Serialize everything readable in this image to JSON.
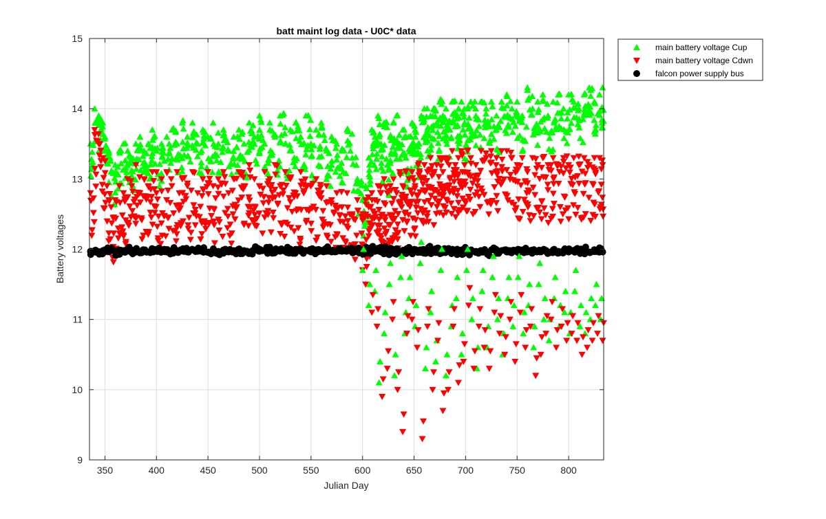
{
  "chart_data": {
    "type": "scatter",
    "title": "batt maint log data - U0C* data",
    "xlabel": "Julian Day",
    "ylabel": "Battery voltages",
    "xlim": [
      335,
      834
    ],
    "ylim": [
      9,
      15
    ],
    "xticks": [
      350,
      400,
      450,
      500,
      550,
      600,
      650,
      700,
      750,
      800
    ],
    "yticks": [
      9,
      10,
      11,
      12,
      13,
      14,
      15
    ],
    "grid": true,
    "legend_position": "outside top-right",
    "series": [
      {
        "name": "main battery voltage Cup",
        "marker": "triangle-up",
        "color": "#00ff00",
        "x": [
          336,
          340,
          344,
          348,
          352,
          356,
          360,
          364,
          368,
          372,
          376,
          380,
          384,
          388,
          392,
          396,
          400,
          405,
          410,
          415,
          420,
          425,
          430,
          435,
          440,
          445,
          450,
          455,
          460,
          465,
          470,
          475,
          480,
          485,
          490,
          495,
          500,
          505,
          510,
          515,
          520,
          525,
          530,
          535,
          540,
          545,
          550,
          555,
          560,
          565,
          570,
          575,
          580,
          585,
          590,
          595,
          600,
          603,
          606,
          609,
          612,
          615,
          618,
          621,
          624,
          627,
          630,
          633,
          636,
          639,
          642,
          645,
          648,
          651,
          654,
          657,
          660,
          663,
          666,
          669,
          672,
          675,
          678,
          681,
          684,
          687,
          690,
          693,
          696,
          699,
          702,
          705,
          710,
          715,
          720,
          725,
          730,
          735,
          740,
          745,
          750,
          755,
          760,
          765,
          770,
          775,
          780,
          785,
          790,
          795,
          800,
          805,
          810,
          815,
          820,
          825,
          830,
          833
        ],
        "y": [
          13.5,
          14.0,
          13.9,
          13.8,
          13.4,
          13.1,
          13.2,
          13.4,
          13.5,
          13.4,
          13.3,
          13.5,
          13.6,
          13.4,
          13.5,
          13.7,
          13.4,
          13.5,
          13.6,
          13.7,
          13.5,
          13.8,
          13.6,
          13.8,
          13.5,
          13.7,
          13.6,
          13.8,
          13.5,
          13.7,
          13.4,
          13.6,
          13.7,
          13.5,
          13.8,
          13.6,
          13.9,
          13.5,
          13.8,
          13.6,
          13.9,
          13.5,
          13.7,
          13.8,
          13.6,
          13.9,
          13.5,
          13.7,
          13.8,
          13.4,
          13.6,
          13.5,
          13.4,
          13.7,
          13.3,
          13.0,
          12.7,
          12.9,
          13.3,
          13.7,
          13.6,
          13.9,
          13.5,
          13.8,
          13.2,
          13.6,
          13.8,
          13.9,
          13.5,
          13.7,
          13.3,
          13.6,
          13.8,
          13.7,
          13.5,
          13.9,
          14.0,
          13.7,
          13.9,
          14.0,
          13.8,
          14.1,
          13.9,
          14.0,
          13.8,
          14.1,
          13.9,
          14.0,
          14.1,
          13.8,
          14.0,
          14.1,
          13.9,
          14.1,
          14.0,
          14.1,
          13.9,
          14.1,
          14.2,
          14.0,
          14.1,
          13.9,
          14.3,
          14.0,
          14.1,
          14.2,
          13.9,
          14.1,
          14.2,
          14.0,
          14.2,
          14.1,
          14.0,
          14.2,
          14.3,
          14.1,
          14.2,
          14.3
        ]
      },
      {
        "name": "main battery voltage Cdwn",
        "marker": "triangle-down",
        "color": "#ff0000",
        "x": [
          336,
          340,
          344,
          348,
          352,
          356,
          360,
          364,
          368,
          372,
          376,
          380,
          384,
          388,
          392,
          396,
          400,
          405,
          410,
          415,
          420,
          425,
          430,
          435,
          440,
          445,
          450,
          455,
          460,
          465,
          470,
          475,
          480,
          485,
          490,
          495,
          500,
          505,
          510,
          515,
          520,
          525,
          530,
          535,
          540,
          545,
          550,
          555,
          560,
          565,
          570,
          575,
          580,
          585,
          590,
          595,
          600,
          603,
          606,
          609,
          612,
          615,
          618,
          621,
          624,
          627,
          630,
          633,
          636,
          639,
          642,
          645,
          648,
          651,
          654,
          657,
          660,
          663,
          666,
          669,
          672,
          675,
          678,
          681,
          684,
          687,
          690,
          693,
          696,
          699,
          702,
          705,
          710,
          715,
          720,
          725,
          730,
          735,
          740,
          745,
          750,
          755,
          760,
          765,
          770,
          775,
          780,
          785,
          790,
          795,
          800,
          805,
          810,
          815,
          820,
          825,
          830,
          833
        ],
        "y": [
          12.8,
          13.7,
          13.5,
          13.3,
          12.9,
          12.6,
          12.7,
          12.9,
          12.8,
          13.0,
          12.9,
          13.2,
          12.8,
          13.0,
          12.9,
          13.1,
          12.8,
          13.0,
          13.1,
          12.9,
          13.1,
          13.0,
          12.9,
          13.1,
          12.8,
          13.0,
          13.1,
          12.9,
          13.0,
          13.1,
          12.8,
          13.0,
          13.1,
          12.9,
          13.2,
          13.0,
          12.9,
          13.1,
          13.0,
          13.2,
          12.9,
          13.1,
          13.0,
          12.8,
          13.1,
          12.9,
          12.9,
          13.0,
          12.8,
          12.9,
          12.7,
          12.8,
          12.6,
          12.8,
          12.5,
          12.7,
          12.5,
          12.7,
          12.6,
          12.8,
          12.7,
          12.9,
          12.8,
          13.0,
          12.8,
          12.9,
          13.0,
          12.8,
          13.1,
          12.9,
          13.1,
          13.0,
          13.1,
          12.9,
          13.2,
          13.0,
          13.2,
          13.1,
          13.3,
          13.1,
          13.2,
          13.3,
          13.1,
          13.3,
          13.2,
          13.4,
          13.2,
          13.3,
          13.4,
          13.2,
          13.4,
          13.3,
          13.2,
          13.4,
          13.3,
          13.4,
          13.3,
          13.4,
          13.4,
          13.3,
          13.2,
          13.3,
          13.1,
          13.3,
          13.2,
          13.3,
          13.2,
          13.3,
          13.2,
          13.3,
          13.2,
          13.3,
          13.2,
          13.3,
          13.2,
          13.3,
          13.3,
          13.2
        ]
      },
      {
        "name": "falcon power supply bus",
        "marker": "circle",
        "color": "#000000",
        "x": [
          336,
          340,
          344,
          348,
          352,
          356,
          360,
          364,
          368,
          372,
          376,
          380,
          384,
          388,
          392,
          396,
          400,
          405,
          410,
          415,
          420,
          425,
          430,
          435,
          440,
          445,
          450,
          455,
          460,
          465,
          470,
          475,
          480,
          485,
          490,
          495,
          500,
          505,
          510,
          515,
          520,
          525,
          530,
          535,
          540,
          545,
          550,
          555,
          560,
          565,
          570,
          575,
          580,
          585,
          590,
          595,
          600,
          603,
          606,
          609,
          612,
          615,
          618,
          621,
          624,
          627,
          630,
          633,
          636,
          639,
          642,
          645,
          648,
          651,
          654,
          657,
          660,
          663,
          666,
          669,
          672,
          675,
          678,
          681,
          684,
          687,
          690,
          693,
          696,
          699,
          702,
          705,
          710,
          715,
          720,
          725,
          730,
          735,
          740,
          745,
          750,
          755,
          760,
          765,
          770,
          775,
          780,
          785,
          790,
          795,
          800,
          805,
          810,
          815,
          820,
          825,
          830,
          833
        ],
        "y": [
          11.97,
          11.98,
          11.96,
          11.98,
          11.97,
          11.99,
          11.96,
          11.98,
          11.97,
          11.98,
          11.96,
          11.99,
          11.97,
          11.98,
          11.96,
          11.98,
          11.97,
          11.99,
          11.96,
          11.98,
          11.97,
          11.98,
          11.96,
          11.99,
          11.97,
          11.98,
          11.96,
          11.98,
          11.97,
          11.99,
          11.96,
          11.98,
          11.97,
          11.98,
          11.96,
          11.99,
          11.97,
          11.98,
          11.96,
          11.98,
          11.97,
          11.99,
          11.96,
          11.98,
          11.97,
          11.98,
          11.96,
          11.99,
          11.97,
          11.98,
          11.96,
          11.98,
          11.97,
          11.99,
          11.96,
          11.98,
          11.97,
          11.98,
          11.96,
          11.99,
          11.97,
          11.98,
          11.96,
          11.98,
          11.97,
          11.99,
          11.96,
          11.98,
          11.97,
          11.98,
          11.96,
          11.99,
          11.97,
          11.98,
          11.96,
          11.98,
          11.97,
          11.99,
          11.96,
          11.98,
          11.97,
          11.98,
          11.96,
          11.99,
          11.97,
          11.98,
          11.96,
          11.98,
          11.97,
          11.99,
          11.96,
          11.98,
          11.97,
          11.98,
          11.96,
          11.99,
          11.97,
          11.98,
          11.96,
          11.98,
          11.97,
          11.99,
          11.96,
          11.98,
          11.97,
          11.98,
          11.96,
          11.99,
          11.97,
          11.98,
          11.96,
          11.98,
          11.97,
          11.99,
          11.96,
          11.98,
          11.97,
          11.96
        ]
      }
    ],
    "low_outliers": {
      "cup_x": [
        600,
        606,
        612,
        616,
        621,
        626,
        631,
        637,
        641,
        645,
        651,
        656,
        661,
        666,
        671,
        676,
        681,
        686,
        691,
        696,
        701,
        706,
        711,
        716,
        721,
        726,
        731,
        736,
        741,
        746,
        751,
        756,
        761,
        766,
        771,
        776,
        781,
        786,
        791,
        796,
        801,
        806,
        811,
        816,
        821,
        826,
        831
      ],
      "cup_y": [
        11.7,
        11.2,
        11.4,
        10.1,
        10.8,
        11.5,
        10.2,
        11.6,
        10.8,
        11.3,
        10.9,
        11.8,
        10.3,
        11.1,
        10.4,
        11.7,
        10.2,
        10.9,
        11.3,
        10.5,
        11.7,
        11.0,
        10.3,
        11.4,
        10.6,
        11.6,
        11.0,
        10.5,
        11.3,
        10.9,
        11.6,
        10.8,
        11.2,
        10.6,
        11.5,
        11.0,
        10.7,
        11.3,
        10.9,
        11.1,
        10.8,
        11.4,
        10.9,
        10.8,
        11.0,
        11.2,
        11.0
      ],
      "cdwn_x": [
        603,
        609,
        614,
        619,
        624,
        629,
        634,
        639,
        643,
        648,
        653,
        658,
        663,
        668,
        673,
        678,
        683,
        688,
        693,
        698,
        703,
        708,
        713,
        718,
        723,
        728,
        733,
        738,
        743,
        748,
        753,
        758,
        763,
        768,
        773,
        778,
        783,
        788,
        793,
        798,
        803,
        808,
        813,
        818,
        823,
        828,
        833
      ],
      "cdwn_y": [
        11.5,
        11.1,
        10.9,
        9.9,
        10.3,
        11.0,
        10.0,
        9.4,
        10.8,
        11.0,
        10.6,
        9.3,
        10.9,
        10.0,
        10.7,
        9.7,
        10.0,
        10.9,
        10.1,
        10.4,
        11.2,
        10.3,
        10.9,
        10.6,
        10.3,
        11.1,
        10.8,
        10.5,
        11.0,
        10.4,
        11.1,
        10.6,
        10.9,
        10.2,
        10.5,
        10.8,
        11.0,
        10.6,
        10.9,
        10.7,
        10.8,
        10.7,
        10.5,
        10.6,
        10.7,
        10.8,
        10.7
      ]
    }
  }
}
